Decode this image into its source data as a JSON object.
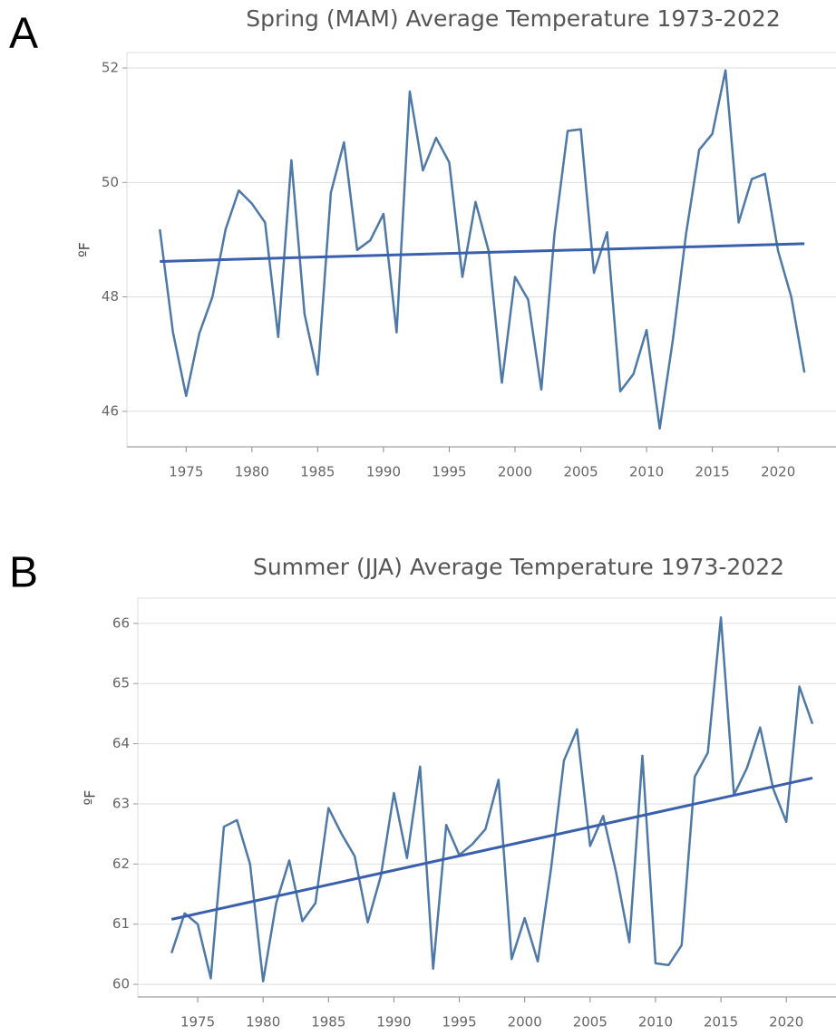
{
  "chart_data": [
    {
      "type": "line",
      "panel": "A",
      "title": "Spring (MAM) Average Temperature 1973-2022",
      "y_label": "ºF",
      "x": [
        1973,
        1974,
        1975,
        1976,
        1977,
        1978,
        1979,
        1980,
        1981,
        1982,
        1983,
        1984,
        1985,
        1986,
        1987,
        1988,
        1989,
        1990,
        1991,
        1992,
        1993,
        1994,
        1995,
        1996,
        1997,
        1998,
        1999,
        2000,
        2001,
        2002,
        2003,
        2004,
        2005,
        2006,
        2007,
        2008,
        2009,
        2010,
        2011,
        2012,
        2013,
        2014,
        2015,
        2016,
        2017,
        2018,
        2019,
        2020,
        2021,
        2022
      ],
      "series": [
        {
          "color": "#4e79a7",
          "values": [
            49.18,
            47.38,
            46.27,
            47.36,
            48.0,
            49.18,
            49.86,
            49.63,
            49.3,
            47.3,
            50.39,
            47.7,
            46.64,
            49.82,
            50.7,
            48.82,
            48.99,
            49.45,
            47.38,
            51.59,
            50.21,
            50.78,
            50.35,
            48.35,
            49.66,
            48.8,
            46.5,
            48.35,
            47.95,
            46.38,
            49.1,
            50.9,
            50.93,
            48.42,
            49.13,
            46.35,
            46.65,
            47.42,
            45.7,
            47.25,
            49.1,
            50.57,
            50.85,
            51.96,
            49.3,
            50.06,
            50.15,
            48.8,
            48.0,
            46.68
          ]
        }
      ],
      "trend": {
        "color": "#3a5fad",
        "x": [
          1973,
          2022
        ],
        "values": [
          48.62,
          48.93
        ]
      },
      "xlim": [
        1970.5,
        2024.4
      ],
      "xticks": [
        1975,
        1980,
        1985,
        1990,
        1995,
        2000,
        2005,
        2010,
        2015,
        2020
      ],
      "ylim": [
        45.38,
        52.27
      ],
      "yticks": [
        46,
        48,
        50,
        52
      ],
      "grid": true
    },
    {
      "type": "line",
      "panel": "B",
      "title": "Summer (JJA) Average Temperature 1973-2022",
      "y_label": "ºF",
      "x": [
        1973,
        1974,
        1975,
        1976,
        1977,
        1978,
        1979,
        1980,
        1981,
        1982,
        1983,
        1984,
        1985,
        1986,
        1987,
        1988,
        1989,
        1990,
        1991,
        1992,
        1993,
        1994,
        1995,
        1996,
        1997,
        1998,
        1999,
        2000,
        2001,
        2002,
        2003,
        2004,
        2005,
        2006,
        2007,
        2008,
        2009,
        2010,
        2011,
        2012,
        2013,
        2014,
        2015,
        2016,
        2017,
        2018,
        2019,
        2020,
        2021,
        2022
      ],
      "series": [
        {
          "color": "#4e79a7",
          "values": [
            60.52,
            61.18,
            61.0,
            60.1,
            62.62,
            62.73,
            62.0,
            60.05,
            61.35,
            62.06,
            61.05,
            61.35,
            62.93,
            62.5,
            62.13,
            61.03,
            61.8,
            63.18,
            62.1,
            63.62,
            60.26,
            62.65,
            62.15,
            62.33,
            62.58,
            63.4,
            60.42,
            61.1,
            60.38,
            61.9,
            63.72,
            64.24,
            62.3,
            62.8,
            61.85,
            60.7,
            63.8,
            60.35,
            60.32,
            60.65,
            63.45,
            63.85,
            66.1,
            63.15,
            63.6,
            64.27,
            63.25,
            62.7,
            64.95,
            64.33
          ]
        }
      ],
      "trend": {
        "color": "#3a5fad",
        "x": [
          1973,
          2022
        ],
        "values": [
          61.08,
          63.43
        ]
      },
      "xlim": [
        1970.42,
        2023.8
      ],
      "xticks": [
        1975,
        1980,
        1985,
        1990,
        1995,
        2000,
        2005,
        2010,
        2015,
        2020
      ],
      "ylim": [
        59.79,
        66.42
      ],
      "yticks": [
        60,
        61,
        62,
        63,
        64,
        65,
        66
      ],
      "grid": true
    }
  ]
}
